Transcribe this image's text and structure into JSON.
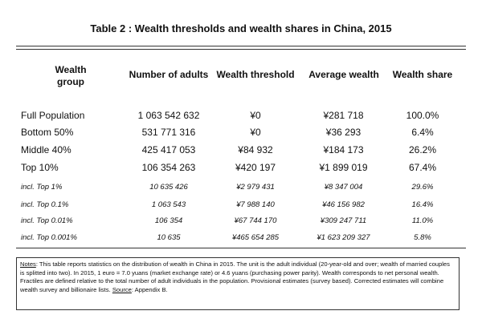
{
  "title": "Table 2 : Wealth thresholds and wealth shares in China, 2015",
  "columns": {
    "group": "Wealth group",
    "adults": "Number of adults",
    "threshold": "Wealth threshold",
    "average": "Average wealth",
    "share": "Wealth share"
  },
  "rows": [
    {
      "group": "Full Population",
      "adults": "1 063 542 632",
      "threshold": "¥0",
      "average": "¥281 718",
      "share": "100.0%"
    },
    {
      "group": "Bottom 50%",
      "adults": "531 771 316",
      "threshold": "¥0",
      "average": "¥36 293",
      "share": "6.4%"
    },
    {
      "group": "Middle 40%",
      "adults": "425 417 053",
      "threshold": "¥84 932",
      "average": "¥184 173",
      "share": "26.2%"
    },
    {
      "group": "Top 10%",
      "adults": "106 354 263",
      "threshold": "¥420 197",
      "average": "¥1 899 019",
      "share": "67.4%"
    },
    {
      "group": "incl. Top 1%",
      "adults": "10 635 426",
      "threshold": "¥2 979 431",
      "average": "¥8 347 004",
      "share": "29.6%"
    },
    {
      "group": "incl. Top 0.1%",
      "adults": "1 063 543",
      "threshold": "¥7 988 140",
      "average": "¥46 156 982",
      "share": "16.4%"
    },
    {
      "group": "incl. Top 0.01%",
      "adults": "106 354",
      "threshold": "¥67 744 170",
      "average": "¥309 247 711",
      "share": "11.0%"
    },
    {
      "group": "incl. Top 0.001%",
      "adults": "10 635",
      "threshold": "¥465 654 285",
      "average": "¥1 623 209 327",
      "share": "5.8%"
    }
  ],
  "notes": {
    "label": "Notes",
    "text1": ": This table reports statistics on the distribution of wealth in China in 2015.  The unit is the adult individual (20-year-old and over; wealth of married couples is splitted into two). In 2015, 1 euro = 7.0 yuans (market exchange rate) or 4.6 yuans (purchasing power parity). Wealth corresponds to net personal wealth. Fractiles are defined relative to the total number of adult individuals in the population. Provisional estimates (survey based). Corrected estimates will combine wealth survey and billionaire lists. ",
    "source_label": "Source",
    "text2": ": Appendix B."
  }
}
